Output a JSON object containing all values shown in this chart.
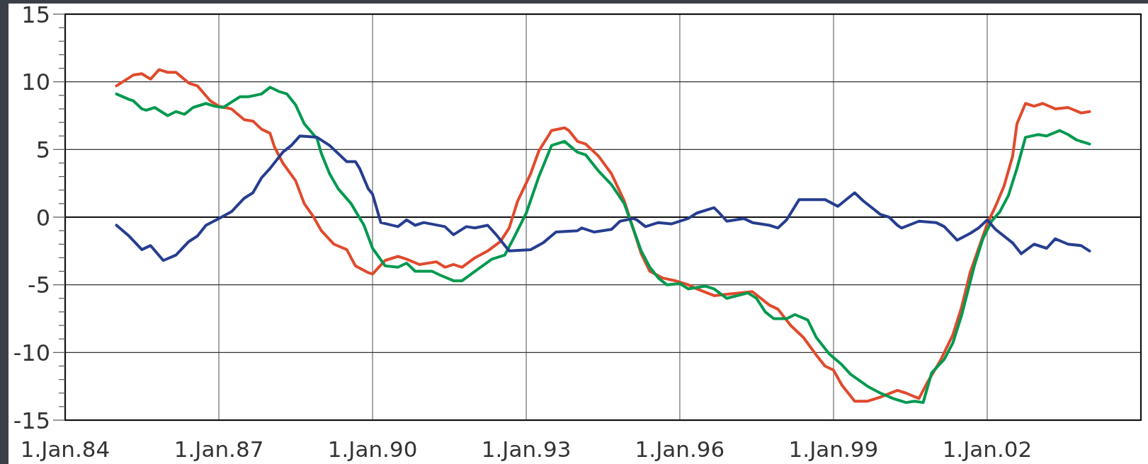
{
  "chart_data": {
    "type": "line",
    "xlim": [
      "1984-01-01",
      "2005-01-01"
    ],
    "xticks": [
      {
        "value": "1984-01-01",
        "label": "1.Jan.84"
      },
      {
        "value": "1987-01-01",
        "label": "1.Jan.87"
      },
      {
        "value": "1990-01-01",
        "label": "1.Jan.90"
      },
      {
        "value": "1993-01-01",
        "label": "1.Jan.93"
      },
      {
        "value": "1996-01-01",
        "label": "1.Jan.96"
      },
      {
        "value": "1999-01-01",
        "label": "1.Jan.99"
      },
      {
        "value": "2002-01-01",
        "label": "1.Jan.02"
      }
    ],
    "ylim": [
      -15,
      15
    ],
    "yticks": [
      -15,
      {
        "value": -14,
        "label": null
      },
      {
        "value": -13,
        "label": null
      },
      {
        "value": -12,
        "label": null
      },
      {
        "value": -11,
        "label": null
      },
      -10,
      {
        "value": -9,
        "label": null
      },
      {
        "value": -8,
        "label": null
      },
      {
        "value": -7,
        "label": null
      },
      {
        "value": -6,
        "label": null
      },
      -5,
      {
        "value": -4,
        "label": null
      },
      {
        "value": -3,
        "label": null
      },
      {
        "value": -2,
        "label": null
      },
      {
        "value": -1,
        "label": null
      },
      0,
      {
        "value": 1,
        "label": null
      },
      {
        "value": 2,
        "label": null
      },
      {
        "value": 3,
        "label": null
      },
      {
        "value": 4,
        "label": null
      },
      5,
      {
        "value": 6,
        "label": null
      },
      {
        "value": 7,
        "label": null
      },
      {
        "value": 8,
        "label": null
      },
      {
        "value": 9,
        "label": null
      },
      10,
      {
        "value": 11,
        "label": null
      },
      {
        "value": 12,
        "label": null
      },
      {
        "value": 13,
        "label": null
      },
      {
        "value": 14,
        "label": null
      },
      15
    ],
    "grid": true,
    "ref_lines": [
      {
        "axis": "y",
        "value": 0,
        "color": "#111111"
      }
    ],
    "series": [
      {
        "color": "#e04a2c",
        "x": [
          "1985-01",
          "1985-05",
          "1985-07",
          "1985-09",
          "1985-11",
          "1986-01",
          "1986-03",
          "1986-06",
          "1986-08",
          "1986-11",
          "1987-01",
          "1987-04",
          "1987-07",
          "1987-09",
          "1987-11",
          "1988-01",
          "1988-02",
          "1988-04",
          "1988-07",
          "1988-09",
          "1988-11",
          "1989-01",
          "1989-04",
          "1989-07",
          "1989-09",
          "1989-12",
          "1990-01",
          "1990-04",
          "1990-07",
          "1990-09",
          "1990-12",
          "1991-04",
          "1991-06",
          "1991-08",
          "1991-10",
          "1992-01",
          "1992-04",
          "1992-07",
          "1992-09",
          "1992-11",
          "1993-02",
          "1993-04",
          "1993-07",
          "1993-10",
          "1993-11",
          "1994-01",
          "1994-03",
          "1994-06",
          "1994-09",
          "1994-12",
          "1995-02",
          "1995-04",
          "1995-06",
          "1995-09",
          "1995-12",
          "1996-03",
          "1996-05",
          "1996-09",
          "1996-12",
          "1997-03",
          "1997-06",
          "1997-10",
          "1997-12",
          "1998-03",
          "1998-06",
          "1998-09",
          "1998-11",
          "1999-01",
          "1999-03",
          "1999-06",
          "1999-09",
          "1999-12",
          "2000-04",
          "2000-06",
          "2000-09",
          "2000-11",
          "2001-02",
          "2001-05",
          "2001-07",
          "2001-09",
          "2001-11",
          "2002-01",
          "2002-03",
          "2002-05",
          "2002-07",
          "2002-08",
          "2002-10",
          "2002-12",
          "2003-02",
          "2003-05",
          "2003-08",
          "2003-11",
          "2004-01"
        ],
        "values": [
          9.7,
          10.5,
          10.6,
          10.2,
          10.9,
          10.7,
          10.7,
          9.9,
          9.7,
          8.6,
          8.2,
          8.0,
          7.2,
          7.1,
          6.5,
          6.2,
          5.2,
          4.0,
          2.7,
          1.0,
          0.1,
          -1.0,
          -2.0,
          -2.4,
          -3.6,
          -4.1,
          -4.2,
          -3.2,
          -2.9,
          -3.1,
          -3.5,
          -3.3,
          -3.7,
          -3.5,
          -3.7,
          -3.0,
          -2.5,
          -1.8,
          -0.8,
          1.2,
          3.2,
          4.9,
          6.4,
          6.6,
          6.4,
          5.6,
          5.4,
          4.5,
          3.2,
          1.2,
          -0.8,
          -2.7,
          -4.0,
          -4.5,
          -4.7,
          -5.0,
          -5.3,
          -5.8,
          -5.7,
          -5.6,
          -5.5,
          -6.5,
          -6.8,
          -8.0,
          -8.9,
          -10.2,
          -11.0,
          -11.3,
          -12.4,
          -13.6,
          -13.6,
          -13.3,
          -12.8,
          -13.0,
          -13.4,
          -12.2,
          -10.6,
          -8.7,
          -6.7,
          -4.1,
          -2.3,
          -0.5,
          0.8,
          2.3,
          4.5,
          6.9,
          8.4,
          8.2,
          8.4,
          8.0,
          8.1,
          7.7,
          7.8
        ]
      },
      {
        "color": "#00994f",
        "x": [
          "1985-01",
          "1985-04",
          "1985-05",
          "1985-07",
          "1985-08",
          "1985-10",
          "1986-01",
          "1986-03",
          "1986-05",
          "1986-07",
          "1986-10",
          "1986-12",
          "1987-02",
          "1987-04",
          "1987-06",
          "1987-08",
          "1987-11",
          "1988-01",
          "1988-03",
          "1988-05",
          "1988-07",
          "1988-09",
          "1988-12",
          "1989-01",
          "1989-03",
          "1989-05",
          "1989-08",
          "1989-11",
          "1990-01",
          "1990-04",
          "1990-07",
          "1990-09",
          "1990-11",
          "1991-03",
          "1991-05",
          "1991-08",
          "1991-10",
          "1992-01",
          "1992-05",
          "1992-08",
          "1992-10",
          "1993-01",
          "1993-04",
          "1993-07",
          "1993-10",
          "1994-01",
          "1994-03",
          "1994-06",
          "1994-09",
          "1994-12",
          "1995-02",
          "1995-04",
          "1995-06",
          "1995-08",
          "1995-10",
          "1996-01",
          "1996-03",
          "1996-07",
          "1996-09",
          "1996-12",
          "1997-05",
          "1997-07",
          "1997-09",
          "1997-11",
          "1998-02",
          "1998-04",
          "1998-07",
          "1998-09",
          "1998-12",
          "1999-03",
          "1999-05",
          "1999-09",
          "1999-12",
          "2000-03",
          "2000-06",
          "2000-08",
          "2000-10",
          "2000-12",
          "2001-03",
          "2001-05",
          "2001-07",
          "2001-10",
          "2001-12",
          "2002-02",
          "2002-04",
          "2002-06",
          "2002-08",
          "2002-10",
          "2003-01",
          "2003-03",
          "2003-06",
          "2003-08",
          "2003-10",
          "2004-01"
        ],
        "values": [
          9.1,
          8.7,
          8.6,
          8.0,
          7.9,
          8.1,
          7.5,
          7.8,
          7.6,
          8.1,
          8.4,
          8.2,
          8.1,
          8.5,
          8.9,
          8.9,
          9.1,
          9.6,
          9.3,
          9.1,
          8.3,
          6.9,
          5.8,
          4.7,
          3.2,
          2.1,
          1.0,
          -0.6,
          -2.3,
          -3.6,
          -3.7,
          -3.4,
          -4.0,
          -4.0,
          -4.3,
          -4.7,
          -4.7,
          -4.0,
          -3.1,
          -2.8,
          -1.6,
          0.3,
          3.0,
          5.3,
          5.6,
          4.8,
          4.6,
          3.4,
          2.4,
          1.0,
          -0.8,
          -2.5,
          -3.7,
          -4.5,
          -5.0,
          -4.9,
          -5.3,
          -5.1,
          -5.3,
          -6.0,
          -5.6,
          -6.0,
          -7.0,
          -7.5,
          -7.5,
          -7.2,
          -7.6,
          -8.9,
          -10.1,
          -10.9,
          -11.6,
          -12.5,
          -13.0,
          -13.4,
          -13.7,
          -13.6,
          -13.7,
          -11.5,
          -10.5,
          -9.3,
          -7.3,
          -3.6,
          -1.6,
          -0.3,
          0.4,
          1.6,
          3.6,
          5.9,
          6.1,
          6.0,
          6.4,
          6.1,
          5.7,
          5.4
        ]
      },
      {
        "color": "#263d8f",
        "x": [
          "1985-01",
          "1985-04",
          "1985-07",
          "1985-09",
          "1985-12",
          "1986-03",
          "1986-06",
          "1986-08",
          "1986-10",
          "1987-01",
          "1987-04",
          "1987-07",
          "1987-09",
          "1987-11",
          "1988-01",
          "1988-04",
          "1988-06",
          "1988-08",
          "1988-12",
          "1989-03",
          "1989-07",
          "1989-09",
          "1989-10",
          "1989-12",
          "1990-01",
          "1990-03",
          "1990-07",
          "1990-09",
          "1990-11",
          "1991-01",
          "1991-06",
          "1991-08",
          "1991-11",
          "1992-01",
          "1992-04",
          "1992-06",
          "1992-09",
          "1993-02",
          "1993-05",
          "1993-08",
          "1994-01",
          "1994-02",
          "1994-05",
          "1994-09",
          "1994-11",
          "1995-02",
          "1995-03",
          "1995-05",
          "1995-08",
          "1995-11",
          "1996-03",
          "1996-05",
          "1996-09",
          "1996-10",
          "1996-12",
          "1997-04",
          "1997-06",
          "1997-10",
          "1997-12",
          "1998-02",
          "1998-05",
          "1998-08",
          "1998-11",
          "1999-02",
          "1999-06",
          "1999-08",
          "1999-12",
          "2000-02",
          "2000-04",
          "2000-05",
          "2000-09",
          "2001-01",
          "2001-03",
          "2001-06",
          "2001-09",
          "2001-11",
          "2002-01",
          "2002-03",
          "2002-07",
          "2002-09",
          "2002-12",
          "2003-03",
          "2003-05",
          "2003-08",
          "2003-11",
          "2004-01"
        ],
        "values": [
          -0.6,
          -1.4,
          -2.4,
          -2.1,
          -3.2,
          -2.8,
          -1.8,
          -1.4,
          -0.6,
          -0.1,
          0.4,
          1.4,
          1.8,
          2.9,
          3.6,
          4.8,
          5.3,
          6.0,
          5.9,
          5.3,
          4.1,
          4.1,
          3.6,
          2.1,
          1.7,
          -0.4,
          -0.7,
          -0.2,
          -0.6,
          -0.4,
          -0.7,
          -1.3,
          -0.7,
          -0.8,
          -0.6,
          -1.3,
          -2.5,
          -2.4,
          -1.9,
          -1.1,
          -1.0,
          -0.8,
          -1.1,
          -0.9,
          -0.3,
          -0.1,
          -0.2,
          -0.7,
          -0.4,
          -0.5,
          -0.1,
          0.3,
          0.7,
          0.4,
          -0.3,
          -0.1,
          -0.4,
          -0.6,
          -0.8,
          -0.2,
          1.3,
          1.3,
          1.3,
          0.8,
          1.8,
          1.2,
          0.2,
          0.0,
          -0.6,
          -0.8,
          -0.3,
          -0.4,
          -0.7,
          -1.7,
          -1.2,
          -0.8,
          -0.2,
          -0.9,
          -1.9,
          -2.7,
          -2.0,
          -2.3,
          -1.6,
          -2.0,
          -2.1,
          -2.5
        ]
      }
    ]
  }
}
